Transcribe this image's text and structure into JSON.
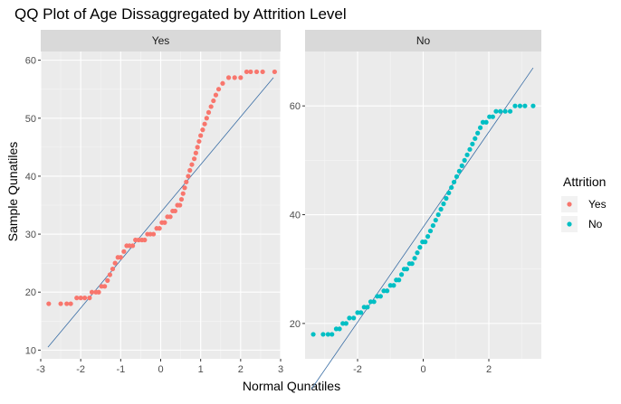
{
  "chart_data": {
    "type": "scatter",
    "title": "QQ Plot of Age Dissaggregated by Attrition Level",
    "xlabel": "Normal Qunatiles",
    "ylabel": "Sample Qunatiles",
    "legend": {
      "title": "Attrition",
      "placement": "right",
      "entries": [
        {
          "label": "Yes",
          "color": "#F8766D"
        },
        {
          "label": "No",
          "color": "#00BFC4"
        }
      ]
    },
    "grid": true,
    "panels": [
      {
        "strip": "Yes",
        "color": "#F8766D",
        "xlim": [
          -3.0,
          3.0
        ],
        "ylim": [
          8.5,
          61.5
        ],
        "xticks": [
          -3,
          -2,
          -1,
          0,
          1,
          2,
          3
        ],
        "yticks": [
          10,
          20,
          30,
          40,
          50,
          60
        ],
        "line": {
          "x": [
            -2.82,
            2.82
          ],
          "y": [
            10.5,
            57
          ]
        },
        "points": [
          [
            -2.8,
            18
          ],
          [
            -2.5,
            18
          ],
          [
            -2.35,
            18
          ],
          [
            -2.25,
            18
          ],
          [
            -2.1,
            19
          ],
          [
            -2.0,
            19
          ],
          [
            -1.9,
            19
          ],
          [
            -1.78,
            19
          ],
          [
            -1.72,
            20
          ],
          [
            -1.62,
            20
          ],
          [
            -1.55,
            20
          ],
          [
            -1.48,
            21
          ],
          [
            -1.4,
            21
          ],
          [
            -1.33,
            22
          ],
          [
            -1.27,
            23
          ],
          [
            -1.2,
            24
          ],
          [
            -1.14,
            25
          ],
          [
            -1.07,
            26
          ],
          [
            -1.0,
            26
          ],
          [
            -0.92,
            27
          ],
          [
            -0.85,
            28
          ],
          [
            -0.78,
            28
          ],
          [
            -0.7,
            28
          ],
          [
            -0.63,
            29
          ],
          [
            -0.55,
            29
          ],
          [
            -0.47,
            29
          ],
          [
            -0.4,
            29
          ],
          [
            -0.33,
            30
          ],
          [
            -0.26,
            30
          ],
          [
            -0.18,
            30
          ],
          [
            -0.1,
            31
          ],
          [
            -0.03,
            31
          ],
          [
            0.03,
            32
          ],
          [
            0.1,
            32
          ],
          [
            0.17,
            33
          ],
          [
            0.24,
            33
          ],
          [
            0.3,
            34
          ],
          [
            0.36,
            34
          ],
          [
            0.42,
            35
          ],
          [
            0.48,
            35
          ],
          [
            0.52,
            36
          ],
          [
            0.56,
            37
          ],
          [
            0.6,
            38
          ],
          [
            0.64,
            39
          ],
          [
            0.69,
            40
          ],
          [
            0.73,
            41
          ],
          [
            0.78,
            42
          ],
          [
            0.84,
            43
          ],
          [
            0.88,
            44
          ],
          [
            0.92,
            45
          ],
          [
            0.96,
            46
          ],
          [
            1.0,
            47
          ],
          [
            1.05,
            48
          ],
          [
            1.1,
            49
          ],
          [
            1.15,
            50
          ],
          [
            1.2,
            51
          ],
          [
            1.26,
            52
          ],
          [
            1.32,
            53
          ],
          [
            1.38,
            54
          ],
          [
            1.45,
            55
          ],
          [
            1.55,
            56
          ],
          [
            1.7,
            57
          ],
          [
            1.85,
            57
          ],
          [
            2.0,
            57
          ],
          [
            2.15,
            58
          ],
          [
            2.25,
            58
          ],
          [
            2.4,
            58
          ],
          [
            2.55,
            58
          ],
          [
            2.85,
            58
          ]
        ]
      },
      {
        "strip": "No",
        "color": "#00BFC4",
        "xlim": [
          -3.6,
          3.6
        ],
        "ylim": [
          13.5,
          70.0
        ],
        "xticks": [
          -2,
          0,
          2
        ],
        "yticks": [
          20,
          40,
          60
        ],
        "line": {
          "x": [
            -3.4,
            3.35
          ],
          "y": [
            8,
            67
          ]
        },
        "points": [
          [
            -3.35,
            18
          ],
          [
            -3.05,
            18
          ],
          [
            -2.9,
            18
          ],
          [
            -2.78,
            18
          ],
          [
            -2.65,
            19
          ],
          [
            -2.55,
            19
          ],
          [
            -2.45,
            20
          ],
          [
            -2.35,
            20
          ],
          [
            -2.25,
            21
          ],
          [
            -2.12,
            21
          ],
          [
            -2.0,
            22
          ],
          [
            -1.9,
            22
          ],
          [
            -1.8,
            23
          ],
          [
            -1.7,
            23
          ],
          [
            -1.6,
            24
          ],
          [
            -1.5,
            24
          ],
          [
            -1.4,
            25
          ],
          [
            -1.3,
            25
          ],
          [
            -1.2,
            26
          ],
          [
            -1.1,
            26
          ],
          [
            -1.0,
            27
          ],
          [
            -0.9,
            27
          ],
          [
            -0.82,
            28
          ],
          [
            -0.74,
            28
          ],
          [
            -0.66,
            29
          ],
          [
            -0.58,
            30
          ],
          [
            -0.5,
            30
          ],
          [
            -0.42,
            31
          ],
          [
            -0.34,
            31
          ],
          [
            -0.26,
            32
          ],
          [
            -0.18,
            33
          ],
          [
            -0.1,
            34
          ],
          [
            -0.02,
            35
          ],
          [
            0.06,
            35
          ],
          [
            0.14,
            36
          ],
          [
            0.22,
            37
          ],
          [
            0.3,
            38
          ],
          [
            0.38,
            39
          ],
          [
            0.46,
            40
          ],
          [
            0.54,
            41
          ],
          [
            0.62,
            42
          ],
          [
            0.7,
            43
          ],
          [
            0.78,
            44
          ],
          [
            0.86,
            45
          ],
          [
            0.94,
            46
          ],
          [
            1.02,
            47
          ],
          [
            1.1,
            48
          ],
          [
            1.18,
            49
          ],
          [
            1.26,
            50
          ],
          [
            1.34,
            51
          ],
          [
            1.42,
            52
          ],
          [
            1.5,
            53
          ],
          [
            1.58,
            54
          ],
          [
            1.66,
            55
          ],
          [
            1.74,
            56
          ],
          [
            1.82,
            57
          ],
          [
            1.92,
            57
          ],
          [
            2.02,
            58
          ],
          [
            2.12,
            58
          ],
          [
            2.22,
            59
          ],
          [
            2.35,
            59
          ],
          [
            2.5,
            59
          ],
          [
            2.65,
            59
          ],
          [
            2.8,
            60
          ],
          [
            2.95,
            60
          ],
          [
            3.1,
            60
          ],
          [
            3.35,
            60
          ]
        ]
      }
    ]
  }
}
